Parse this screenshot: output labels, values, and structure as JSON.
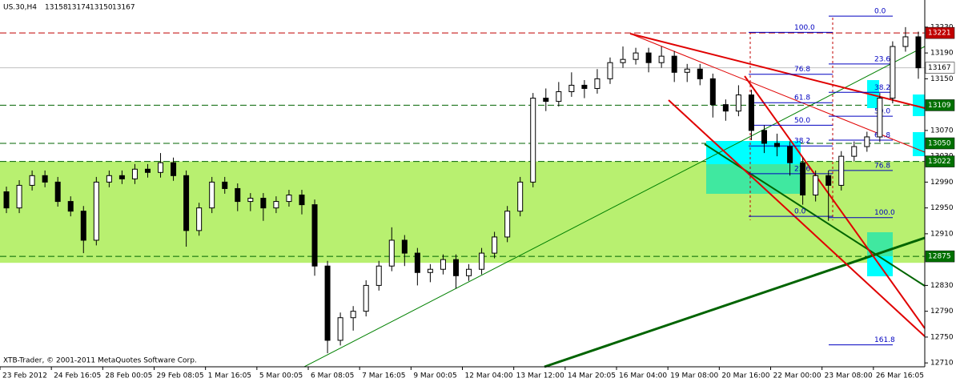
{
  "chart_data": {
    "type": "candlestick",
    "symbol": "US.30,H4",
    "ohlc_header": [
      13158,
      13174,
      13150,
      13167
    ],
    "footer": "XTB-Trader, © 2001-2011 MetaQuotes Software Corp.",
    "categories": [
      "23 Feb 2012",
      null,
      null,
      null,
      "24 Feb 16:05",
      null,
      null,
      null,
      "28 Feb 00:05",
      null,
      null,
      null,
      "29 Feb 08:05",
      null,
      null,
      null,
      "1 Mar 16:05",
      null,
      null,
      null,
      "5 Mar 00:05",
      null,
      null,
      null,
      "6 Mar 08:05",
      null,
      null,
      null,
      "7 Mar 16:05",
      null,
      null,
      null,
      "9 Mar 00:05",
      null,
      null,
      null,
      "12 Mar 04:00",
      null,
      null,
      null,
      "13 Mar 12:00",
      null,
      null,
      null,
      "14 Mar 20:05",
      null,
      null,
      null,
      "16 Mar 04:00",
      null,
      null,
      null,
      "19 Mar 08:00",
      null,
      null,
      null,
      "20 Mar 16:00",
      null,
      null,
      null,
      "22 Mar 00:00",
      null,
      null,
      null,
      "23 Mar 08:00",
      null,
      null,
      null,
      "26 Mar 16:05",
      null,
      null,
      null
    ],
    "open": [
      12975,
      12950,
      12985,
      13000,
      12990,
      12960,
      12945,
      12900,
      12990,
      13000,
      12995,
      13010,
      13005,
      13020,
      13000,
      12915,
      12950,
      12990,
      12980,
      12960,
      12965,
      12950,
      12960,
      12970,
      12955,
      12860,
      12745,
      12780,
      12790,
      12830,
      12860,
      12900,
      12880,
      12850,
      12855,
      12870,
      12845,
      12855,
      12880,
      12905,
      12945,
      12990,
      13120,
      13115,
      13130,
      13140,
      13135,
      13150,
      13175,
      13180,
      13190,
      13175,
      13185,
      13160,
      13165,
      13150,
      13110,
      13100,
      13125,
      13070,
      13050,
      13045,
      13020,
      12970,
      13000,
      12985,
      13030,
      13045,
      13060,
      13120,
      13200,
      13215
    ],
    "high": [
      12983,
      12993,
      13008,
      13008,
      12998,
      12968,
      12953,
      12998,
      13008,
      13008,
      13018,
      13018,
      13035,
      13028,
      13008,
      12958,
      12998,
      12998,
      12988,
      12973,
      12973,
      12968,
      12978,
      12978,
      12963,
      12868,
      12788,
      12798,
      12838,
      12868,
      12920,
      12908,
      12888,
      12863,
      12878,
      12878,
      12863,
      12888,
      12913,
      12953,
      12998,
      13128,
      13135,
      13145,
      13160,
      13148,
      13165,
      13183,
      13200,
      13198,
      13198,
      13200,
      13193,
      13173,
      13173,
      13158,
      13118,
      13140,
      13133,
      13078,
      13065,
      13053,
      13028,
      13008,
      13008,
      13038,
      13053,
      13068,
      13128,
      13208,
      13230,
      13223
    ],
    "low": [
      12942,
      12942,
      12977,
      12982,
      12952,
      12937,
      12880,
      12892,
      12982,
      12987,
      12987,
      12997,
      12997,
      12992,
      12890,
      12907,
      12942,
      12972,
      12945,
      12945,
      12930,
      12942,
      12952,
      12940,
      12845,
      12725,
      12737,
      12760,
      12782,
      12822,
      12852,
      12860,
      12830,
      12835,
      12847,
      12825,
      12837,
      12847,
      12872,
      12897,
      12937,
      12982,
      13100,
      13107,
      13122,
      13120,
      13127,
      13142,
      13167,
      13172,
      13160,
      13167,
      13145,
      13145,
      13140,
      13090,
      13085,
      13092,
      13055,
      13035,
      13030,
      13000,
      12955,
      12960,
      12930,
      12977,
      13022,
      13037,
      13052,
      13112,
      13192,
      13150
    ],
    "close": [
      12950,
      12985,
      13000,
      12990,
      12960,
      12945,
      12900,
      12990,
      13000,
      12995,
      13010,
      13005,
      13020,
      13000,
      12915,
      12950,
      12990,
      12980,
      12960,
      12965,
      12950,
      12960,
      12970,
      12955,
      12860,
      12745,
      12780,
      12790,
      12830,
      12860,
      12900,
      12880,
      12850,
      12855,
      12870,
      12845,
      12855,
      12880,
      12905,
      12945,
      12990,
      13120,
      13115,
      13130,
      13140,
      13135,
      13150,
      13175,
      13180,
      13190,
      13175,
      13185,
      13160,
      13165,
      13150,
      13110,
      13100,
      13125,
      13070,
      13050,
      13045,
      13020,
      12970,
      13000,
      12985,
      13030,
      13045,
      13060,
      13120,
      13200,
      13215,
      13167
    ],
    "ylim": [
      12704,
      13272
    ],
    "yticks": [
      13230,
      13190,
      13150,
      13070,
      13030,
      12990,
      12950,
      12910,
      12830,
      12790,
      12750,
      12710
    ],
    "levels": [
      {
        "value": 13221,
        "color": "#c00000",
        "label_bg": "#c00000",
        "label_fg": "#ffffff"
      },
      {
        "value": 13167,
        "color": "#c0c0c0",
        "label_bg": "#ffffff",
        "label_fg": "#000000"
      },
      {
        "value": 13109,
        "color": "#006400",
        "label_bg": "#007000",
        "label_fg": "#ffffff"
      },
      {
        "value": 13050,
        "color": "#006400",
        "label_bg": "#007000",
        "label_fg": "#ffffff"
      },
      {
        "value": 13022,
        "color": "#006400",
        "label_bg": "#007000",
        "label_fg": "#ffffff"
      },
      {
        "value": 12875,
        "color": "#006400",
        "label_bg": "#007000",
        "label_fg": "#ffffff"
      }
    ],
    "zone": {
      "from": 13022,
      "to": 12865,
      "color": "#b8f070"
    },
    "fibs": [
      {
        "color": "#0000c0",
        "levels": [
          {
            "label": "100.0",
            "price": 13222
          },
          {
            "label": "76.8",
            "price": 13157
          },
          {
            "label": "61.8",
            "price": 13113
          },
          {
            "label": "50.0",
            "price": 13078
          },
          {
            "label": "38.2",
            "price": 13046
          },
          {
            "label": "23.6",
            "price": 13003
          },
          {
            "label": "0.0",
            "price": 12937
          }
        ]
      },
      {
        "color": "#0000c0",
        "levels": [
          {
            "label": "0.0",
            "price": 13247
          },
          {
            "label": "23.6",
            "price": 13173
          },
          {
            "label": "38.2",
            "price": 13129
          },
          {
            "label": "50.0",
            "price": 13092
          },
          {
            "label": "61.8",
            "price": 13055
          },
          {
            "label": "76.8",
            "price": 13008
          },
          {
            "label": "100.0",
            "price": 12935
          },
          {
            "label": "161.8",
            "price": 12738
          }
        ]
      }
    ]
  }
}
